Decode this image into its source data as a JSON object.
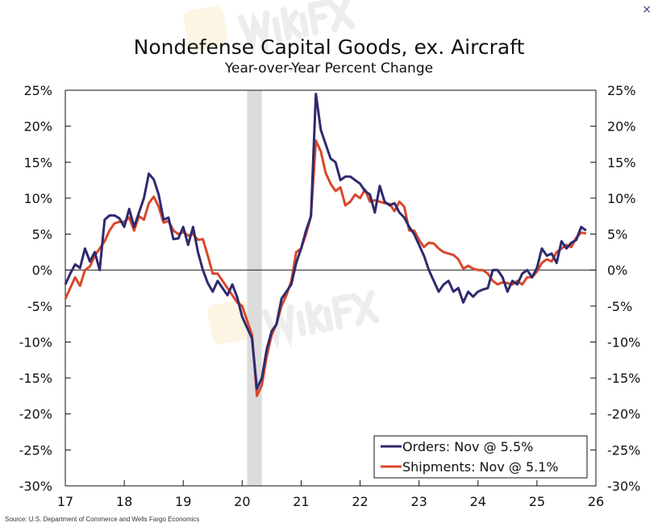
{
  "close_icon": "×",
  "source": "Source: U.S. Department of Commerce and Wells Fargo Economics",
  "watermark": "WikiFX",
  "chart_data": {
    "type": "line",
    "title": "Nondefense Capital Goods, ex. Aircraft",
    "subtitle": "Year-over-Year Percent Change",
    "x_start": "2017-01",
    "frequency": "monthly",
    "x_ticks": [
      "17",
      "18",
      "19",
      "20",
      "21",
      "22",
      "23",
      "24",
      "25",
      "26"
    ],
    "y_ticks": [
      "25%",
      "20%",
      "15%",
      "10%",
      "5%",
      "0%",
      "-5%",
      "-10%",
      "-15%",
      "-20%",
      "-25%",
      "-30%"
    ],
    "ylim": [
      -30,
      25
    ],
    "xlim": [
      2017,
      2026
    ],
    "recession_shading": [
      "2020-02",
      "2020-04"
    ],
    "legend_placement": "bottom-right",
    "series": [
      {
        "name": "Orders: Nov @ 5.5%",
        "color": "#2e2a6e",
        "values": [
          -2,
          -0.5,
          0.8,
          0.3,
          3,
          1.2,
          2.5,
          0,
          7,
          7.6,
          7.6,
          7.2,
          6,
          8.5,
          6,
          8,
          10,
          13.4,
          12.6,
          10.5,
          7,
          7.3,
          4.3,
          4.4,
          6,
          3.5,
          6,
          2.5,
          0,
          -1.8,
          -3,
          -1.5,
          -2.5,
          -3.5,
          -2,
          -3.8,
          -6.5,
          -8,
          -9.5,
          -16.5,
          -15,
          -11,
          -8.5,
          -7.5,
          -4,
          -3,
          -2,
          1,
          3,
          5.5,
          7.5,
          24.5,
          19.5,
          17.5,
          15.5,
          15,
          12.5,
          13,
          13,
          12.5,
          12,
          11,
          10.5,
          8,
          11.7,
          9.5,
          9,
          9.3,
          8,
          7.3,
          6,
          5,
          3.5,
          2,
          0,
          -1.5,
          -3,
          -2,
          -1.5,
          -3,
          -2.5,
          -4.5,
          -3,
          -3.7,
          -3,
          -2.7,
          -2.5,
          0,
          0,
          -1,
          -3,
          -1.5,
          -2,
          -0.5,
          0,
          -1,
          0.3,
          3,
          2,
          2.3,
          1,
          4,
          3,
          3.8,
          4.2,
          6,
          5.5
        ]
      },
      {
        "name": "Shipments: Nov @ 5.1%",
        "color": "#d9472b",
        "values": [
          -4,
          -2.5,
          -1,
          -2.2,
          0,
          0.5,
          2,
          3,
          4,
          5.5,
          6.5,
          6.7,
          6.7,
          7.3,
          5.5,
          7.5,
          7,
          9.3,
          10.2,
          8.8,
          6.6,
          6.8,
          5.5,
          5,
          5.3,
          4.8,
          5,
          4.2,
          4.3,
          2,
          -0.5,
          -0.5,
          -1.5,
          -2.5,
          -3.5,
          -4.5,
          -5,
          -7,
          -9,
          -17.5,
          -16,
          -12,
          -9,
          -7.5,
          -5,
          -3.5,
          -1.5,
          2.5,
          3,
          5,
          7.5,
          18,
          16.5,
          13.5,
          12,
          11,
          11.5,
          9,
          9.5,
          10.5,
          10,
          11.2,
          9.5,
          9.7,
          9.5,
          9.3,
          9.2,
          8.2,
          9.5,
          8.8,
          5.5,
          5.5,
          4.2,
          3.2,
          3.8,
          3.7,
          3,
          2.5,
          2.3,
          2.1,
          1.5,
          0.2,
          0.6,
          0.2,
          0,
          0,
          -0.5,
          -1.5,
          -2,
          -1.7,
          -1.8,
          -2,
          -1.5,
          -2,
          -1,
          -1,
          -0.2,
          1,
          1.5,
          1.2,
          2.5,
          3,
          3.5,
          3.2,
          4.5,
          5.2,
          5.1
        ]
      }
    ]
  }
}
